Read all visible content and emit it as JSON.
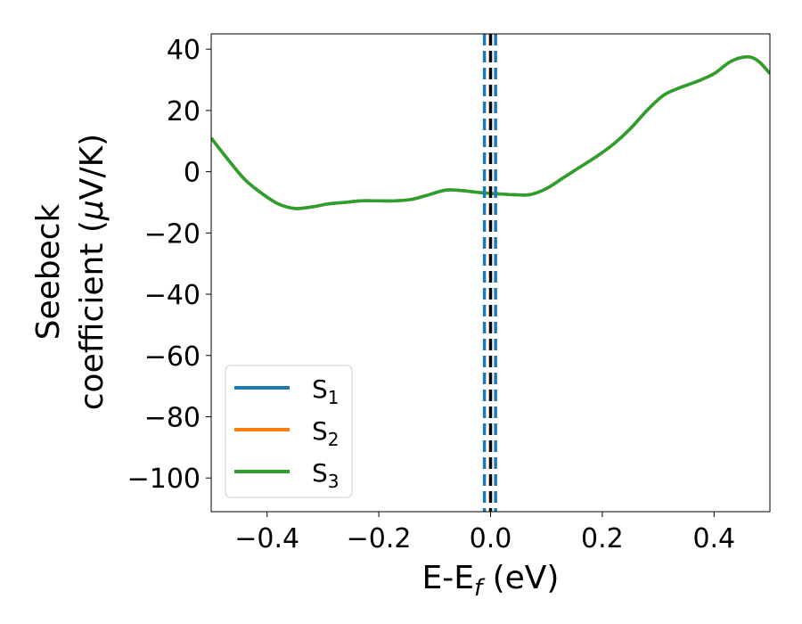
{
  "chart_data": {
    "type": "line",
    "title": "",
    "xlabel": {
      "main": "E-E",
      "sub": "f",
      "unit": " (eV)"
    },
    "ylabel": {
      "line1": "Seebeck",
      "line2_pre": "coefficient  (",
      "mu": "μ",
      "line2_post": "V/K)"
    },
    "xlim": [
      -0.5,
      0.5
    ],
    "ylim": [
      -111,
      45
    ],
    "xticks": [
      -0.4,
      -0.2,
      0.0,
      0.2,
      0.4
    ],
    "xtick_labels": [
      "−0.4",
      "−0.2",
      "0.0",
      "0.2",
      "0.4"
    ],
    "yticks": [
      40,
      20,
      0,
      -20,
      -40,
      -60,
      -80,
      -100
    ],
    "ytick_labels": [
      "40",
      "20",
      "0",
      "−20",
      "−40",
      "−60",
      "−80",
      "−100"
    ],
    "grid": false,
    "legend_position": "lower-left",
    "vertical_lines": [
      {
        "x": -0.011,
        "color": "#1f77b4",
        "style": "dashed"
      },
      {
        "x": 0.0,
        "color": "#000000",
        "style": "dashed"
      },
      {
        "x": 0.009,
        "color": "#1f77b4",
        "style": "dashed"
      }
    ],
    "x": [
      -0.5,
      -0.47,
      -0.44,
      -0.41,
      -0.38,
      -0.35,
      -0.32,
      -0.29,
      -0.26,
      -0.23,
      -0.2,
      -0.17,
      -0.14,
      -0.11,
      -0.08,
      -0.05,
      -0.02,
      0.01,
      0.04,
      0.07,
      0.1,
      0.13,
      0.16,
      0.19,
      0.22,
      0.25,
      0.28,
      0.31,
      0.34,
      0.37,
      0.4,
      0.43,
      0.46,
      0.48,
      0.5
    ],
    "series": [
      {
        "name": "S1",
        "label_main": "S",
        "label_sub": "1",
        "color": "#1f77b4",
        "values": [
          11,
          4,
          -2.5,
          -7,
          -10.5,
          -12,
          -11.5,
          -10.5,
          -10,
          -9.5,
          -9.5,
          -9.5,
          -9,
          -7.5,
          -6,
          -6.2,
          -6.8,
          -7.2,
          -7.5,
          -7.5,
          -5.5,
          -2,
          1.5,
          5,
          9,
          14,
          20,
          25,
          27.5,
          29.5,
          32,
          36,
          37.5,
          36,
          32
        ]
      },
      {
        "name": "S2",
        "label_main": "S",
        "label_sub": "2",
        "color": "#ff7f0e",
        "values": [
          11,
          4,
          -2.5,
          -7,
          -10.5,
          -12,
          -11.5,
          -10.5,
          -10,
          -9.5,
          -9.5,
          -9.5,
          -9,
          -7.5,
          -6,
          -6.2,
          -6.8,
          -7.2,
          -7.5,
          -7.5,
          -5.5,
          -2,
          1.5,
          5,
          9,
          14,
          20,
          25,
          27.5,
          29.5,
          32,
          36,
          37.5,
          36,
          32
        ]
      },
      {
        "name": "S3",
        "label_main": "S",
        "label_sub": "3",
        "color": "#2ca02c",
        "values": [
          11,
          4,
          -2.5,
          -7,
          -10.5,
          -12,
          -11.5,
          -10.5,
          -10,
          -9.5,
          -9.5,
          -9.5,
          -9,
          -7.5,
          -6,
          -6.2,
          -6.8,
          -7.2,
          -7.5,
          -7.5,
          -5.5,
          -2,
          1.5,
          5,
          9,
          14,
          20,
          25,
          27.5,
          29.5,
          32,
          36,
          37.5,
          36,
          32
        ]
      }
    ]
  }
}
